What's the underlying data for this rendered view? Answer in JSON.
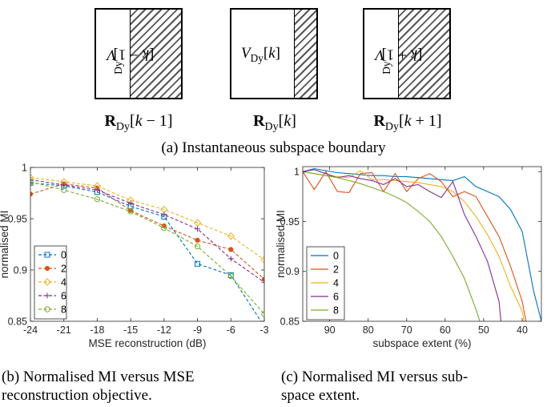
{
  "figure_a": {
    "boxes": [
      {
        "v_label": "V_Dy[k − 1]",
        "r_label": "R_Dy[k − 1]"
      },
      {
        "v_label": "V_Dy[k]",
        "r_label": "R_Dy[k]"
      },
      {
        "v_label": "V_Dy[k + 1]",
        "r_label": "R_Dy[k + 1]"
      }
    ],
    "caption": "(a) Instantaneous subspace boundary"
  },
  "captions": {
    "b_line1": "(b) Normalised MI versus MSE",
    "b_line2": "reconstruction objective.",
    "c_line1": "(c) Normalised MI versus sub-",
    "c_line2": "space extent."
  },
  "chart_data": [
    {
      "type": "line",
      "xlabel": "MSE reconstruction (dB)",
      "ylabel": "normalised MI",
      "xlim": [
        -24,
        -3
      ],
      "ylim": [
        0.85,
        1
      ],
      "xticks": [
        -24,
        -21,
        -18,
        -15,
        -12,
        -9,
        -6,
        -3
      ],
      "yticks": [
        0.85,
        0.9,
        0.95,
        1
      ],
      "ytick_labels": [
        "0.85",
        "0.9",
        "0.95",
        "1"
      ],
      "legend": "bottom-left",
      "x": [
        -24,
        -21,
        -18,
        -15,
        -12,
        -9,
        -6,
        -3
      ],
      "series": [
        {
          "name": "0",
          "color": "#0072BD",
          "marker": "square",
          "values": [
            0.985,
            0.982,
            0.976,
            0.962,
            0.952,
            0.906,
            0.895,
            0.845
          ]
        },
        {
          "name": "2",
          "color": "#D95319",
          "marker": "dot",
          "values": [
            0.974,
            0.984,
            0.98,
            0.958,
            0.943,
            0.929,
            0.92,
            0.891
          ]
        },
        {
          "name": "4",
          "color": "#EDB120",
          "marker": "diamond",
          "values": [
            0.99,
            0.986,
            0.982,
            0.968,
            0.959,
            0.946,
            0.933,
            0.91
          ]
        },
        {
          "name": "6",
          "color": "#7E2F8E",
          "marker": "plus",
          "values": [
            0.988,
            0.983,
            0.978,
            0.965,
            0.954,
            0.94,
            0.911,
            0.888
          ]
        },
        {
          "name": "8",
          "color": "#77AC30",
          "marker": "circle",
          "values": [
            0.986,
            0.978,
            0.969,
            0.957,
            0.941,
            0.923,
            0.894,
            0.857
          ]
        }
      ]
    },
    {
      "type": "line",
      "xlabel": "subspace extent (%)",
      "ylabel": "normalised MI",
      "xlim": [
        97,
        35
      ],
      "ylim": [
        0.85,
        1.005
      ],
      "xticks": [
        90,
        80,
        70,
        60,
        50,
        40
      ],
      "yticks": [
        0.85,
        0.9,
        0.95,
        1
      ],
      "ytick_labels": [
        "0.85",
        "0.9",
        "0.95",
        "1"
      ],
      "legend": "bottom-left",
      "series": [
        {
          "name": "0",
          "color": "#0072BD",
          "x": [
            97,
            94,
            91,
            88,
            85,
            82,
            79,
            76,
            73,
            70,
            67,
            64,
            61,
            58,
            55,
            52,
            49,
            46,
            43,
            40,
            37,
            35
          ],
          "values": [
            1.0,
            1.003,
            1.001,
            0.999,
            0.998,
            0.997,
            0.996,
            0.996,
            0.995,
            0.995,
            0.994,
            0.993,
            0.992,
            0.991,
            0.995,
            0.985,
            0.98,
            0.975,
            0.962,
            0.94,
            0.88,
            0.85
          ]
        },
        {
          "name": "2",
          "color": "#D95319",
          "x": [
            97,
            94,
            91,
            88,
            85,
            82,
            79,
            76,
            73,
            70,
            67,
            64,
            61,
            58,
            55,
            52,
            49,
            46,
            43,
            40,
            39
          ],
          "values": [
            1.0,
            0.982,
            1.0,
            0.98,
            0.979,
            0.998,
            0.999,
            0.98,
            0.998,
            0.98,
            0.993,
            0.998,
            0.99,
            0.975,
            0.98,
            0.975,
            0.955,
            0.935,
            0.905,
            0.87,
            0.85
          ]
        },
        {
          "name": "4",
          "color": "#EDB120",
          "x": [
            97,
            94,
            91,
            88,
            85,
            82,
            79,
            76,
            73,
            70,
            67,
            64,
            61,
            58,
            55,
            52,
            49,
            46,
            43,
            40,
            39.5
          ],
          "values": [
            1.0,
            0.998,
            0.996,
            0.995,
            0.994,
            1.001,
            0.992,
            0.992,
            0.991,
            0.99,
            0.989,
            0.987,
            0.985,
            0.98,
            0.97,
            0.955,
            0.937,
            0.915,
            0.885,
            0.86,
            0.85
          ]
        },
        {
          "name": "6",
          "color": "#7E2F8E",
          "x": [
            97,
            94,
            91,
            88,
            85,
            82,
            79,
            76,
            73,
            70,
            67,
            64,
            61,
            58,
            55,
            52,
            49,
            46,
            45.5
          ],
          "values": [
            1.0,
            1.002,
            0.998,
            0.994,
            0.996,
            0.993,
            0.991,
            0.987,
            0.993,
            0.985,
            0.987,
            0.98,
            0.974,
            0.99,
            0.957,
            0.935,
            0.91,
            0.87,
            0.85
          ]
        },
        {
          "name": "8",
          "color": "#77AC30",
          "x": [
            97,
            94,
            91,
            88,
            85,
            82,
            79,
            76,
            73,
            70,
            67,
            64,
            61,
            58,
            55,
            52,
            51
          ],
          "values": [
            1.0,
            0.998,
            0.996,
            0.994,
            0.991,
            0.988,
            0.984,
            0.98,
            0.975,
            0.969,
            0.96,
            0.95,
            0.935,
            0.915,
            0.893,
            0.862,
            0.85
          ]
        }
      ]
    }
  ]
}
